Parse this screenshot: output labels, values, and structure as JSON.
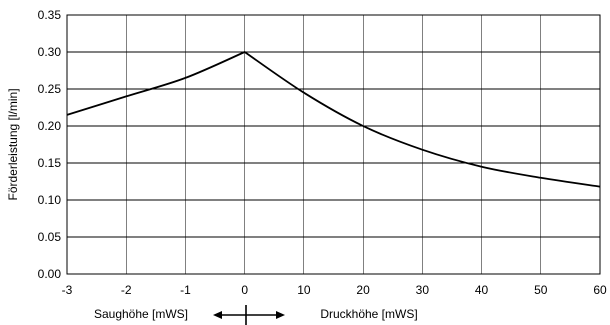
{
  "chart_data": {
    "type": "line",
    "title": "",
    "ylabel": "Förderleistung [l/min]",
    "xlabel_left": "Saughöhe [mWS]",
    "xlabel_right": "Druckhöhe [mWS]",
    "ylim": [
      0,
      0.35
    ],
    "yticks": [
      "0.00",
      "0.05",
      "0.10",
      "0.15",
      "0.20",
      "0.25",
      "0.30",
      "0.35"
    ],
    "xticks": [
      "-3",
      "-2",
      "-1",
      "0",
      "10",
      "20",
      "30",
      "40",
      "50",
      "60"
    ],
    "grid": true,
    "segments": {
      "suction": {
        "x": [
          -3,
          -2,
          -1,
          0
        ],
        "y": [
          0.215,
          0.24,
          0.265,
          0.3
        ]
      },
      "pressure": {
        "x": [
          0,
          10,
          20,
          30,
          40,
          50,
          60
        ],
        "y": [
          0.3,
          0.245,
          0.2,
          0.168,
          0.145,
          0.13,
          0.118
        ]
      }
    },
    "colors": {
      "line": "#000000",
      "grid": "#000000"
    }
  }
}
